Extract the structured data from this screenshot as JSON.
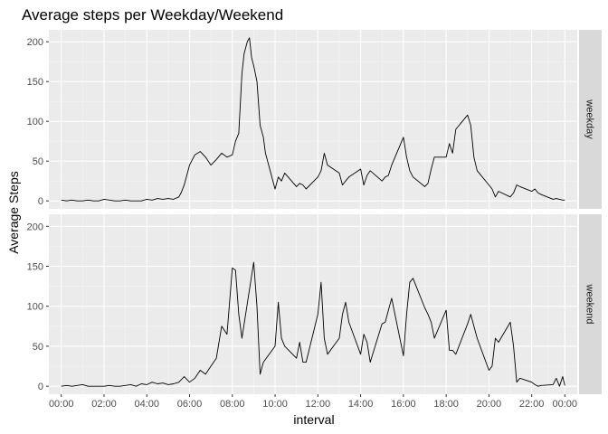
{
  "chart_data": {
    "type": "line",
    "title": "Average steps per Weekday/Weekend",
    "xlabel": "interval",
    "ylabel": "Average Steps",
    "xlim": [
      -58,
      2413
    ],
    "ylim": [
      -10,
      215
    ],
    "y_ticks": [
      0,
      50,
      100,
      150,
      200
    ],
    "x_ticks": [
      {
        "value": 0,
        "label": "00:00"
      },
      {
        "value": 200,
        "label": "02:00"
      },
      {
        "value": 400,
        "label": "04:00"
      },
      {
        "value": 600,
        "label": "06:00"
      },
      {
        "value": 800,
        "label": "08:00"
      },
      {
        "value": 1000,
        "label": "10:00"
      },
      {
        "value": 1200,
        "label": "12:00"
      },
      {
        "value": 1400,
        "label": "14:00"
      },
      {
        "value": 1600,
        "label": "16:00"
      },
      {
        "value": 1800,
        "label": "18:00"
      },
      {
        "value": 2000,
        "label": "20:00"
      },
      {
        "value": 2200,
        "label": "22:00"
      },
      {
        "value": 2355,
        "label": "00:00"
      }
    ],
    "grid": true,
    "panels": [
      {
        "strip_label": "weekday",
        "x": [
          0,
          25,
          50,
          75,
          100,
          125,
          150,
          175,
          200,
          225,
          250,
          275,
          300,
          325,
          350,
          375,
          400,
          425,
          450,
          475,
          500,
          525,
          550,
          560,
          575,
          600,
          625,
          650,
          675,
          700,
          725,
          750,
          775,
          800,
          815,
          830,
          845,
          855,
          870,
          880,
          890,
          900,
          915,
          930,
          945,
          955,
          1000,
          1015,
          1030,
          1045,
          1100,
          1115,
          1130,
          1145,
          1200,
          1215,
          1230,
          1245,
          1300,
          1315,
          1330,
          1345,
          1400,
          1415,
          1430,
          1445,
          1500,
          1515,
          1530,
          1545,
          1600,
          1615,
          1630,
          1645,
          1700,
          1715,
          1730,
          1745,
          1800,
          1815,
          1830,
          1845,
          1900,
          1915,
          1930,
          1945,
          2000,
          2015,
          2030,
          2045,
          2100,
          2115,
          2130,
          2145,
          2200,
          2215,
          2230,
          2245,
          2300,
          2315,
          2330,
          2345,
          2355
        ],
        "y": [
          1,
          0,
          1,
          0,
          0,
          1,
          0,
          0,
          2,
          1,
          0,
          0,
          1,
          0,
          0,
          0,
          2,
          1,
          3,
          2,
          3,
          2,
          5,
          10,
          20,
          45,
          58,
          62,
          55,
          45,
          52,
          60,
          55,
          58,
          75,
          85,
          160,
          185,
          200,
          205,
          180,
          170,
          150,
          95,
          80,
          60,
          15,
          30,
          25,
          35,
          18,
          22,
          20,
          15,
          30,
          38,
          60,
          45,
          35,
          20,
          25,
          30,
          40,
          20,
          32,
          38,
          25,
          30,
          32,
          45,
          80,
          55,
          38,
          30,
          18,
          22,
          40,
          55,
          55,
          72,
          60,
          90,
          108,
          95,
          55,
          38,
          20,
          15,
          5,
          12,
          5,
          10,
          20,
          18,
          12,
          15,
          10,
          8,
          2,
          3,
          2,
          1,
          1
        ]
      },
      {
        "strip_label": "weekend",
        "x": [
          0,
          25,
          50,
          75,
          100,
          125,
          150,
          175,
          200,
          225,
          250,
          275,
          300,
          325,
          350,
          375,
          400,
          425,
          450,
          475,
          500,
          525,
          550,
          575,
          600,
          625,
          650,
          675,
          700,
          725,
          750,
          775,
          800,
          815,
          830,
          845,
          900,
          915,
          930,
          945,
          1000,
          1015,
          1030,
          1045,
          1100,
          1115,
          1130,
          1145,
          1200,
          1215,
          1230,
          1245,
          1300,
          1315,
          1330,
          1345,
          1400,
          1415,
          1430,
          1445,
          1500,
          1515,
          1530,
          1545,
          1600,
          1615,
          1630,
          1645,
          1700,
          1715,
          1730,
          1745,
          1800,
          1815,
          1830,
          1845,
          1900,
          1915,
          1930,
          1945,
          2000,
          2015,
          2030,
          2045,
          2100,
          2115,
          2130,
          2145,
          2200,
          2215,
          2230,
          2245,
          2300,
          2315,
          2330,
          2345,
          2355
        ],
        "y": [
          0,
          1,
          0,
          1,
          2,
          0,
          0,
          0,
          0,
          1,
          0,
          0,
          1,
          2,
          0,
          3,
          2,
          5,
          3,
          4,
          2,
          3,
          5,
          12,
          5,
          10,
          20,
          15,
          25,
          35,
          75,
          65,
          148,
          145,
          90,
          60,
          155,
          100,
          15,
          30,
          50,
          105,
          60,
          50,
          35,
          55,
          30,
          30,
          90,
          130,
          60,
          40,
          60,
          90,
          105,
          80,
          40,
          65,
          55,
          30,
          78,
          80,
          95,
          110,
          38,
          90,
          130,
          135,
          98,
          90,
          80,
          60,
          95,
          45,
          45,
          40,
          78,
          90,
          75,
          60,
          20,
          25,
          60,
          55,
          80,
          50,
          5,
          10,
          5,
          2,
          0,
          1,
          2,
          10,
          0,
          12,
          1
        ]
      }
    ]
  }
}
